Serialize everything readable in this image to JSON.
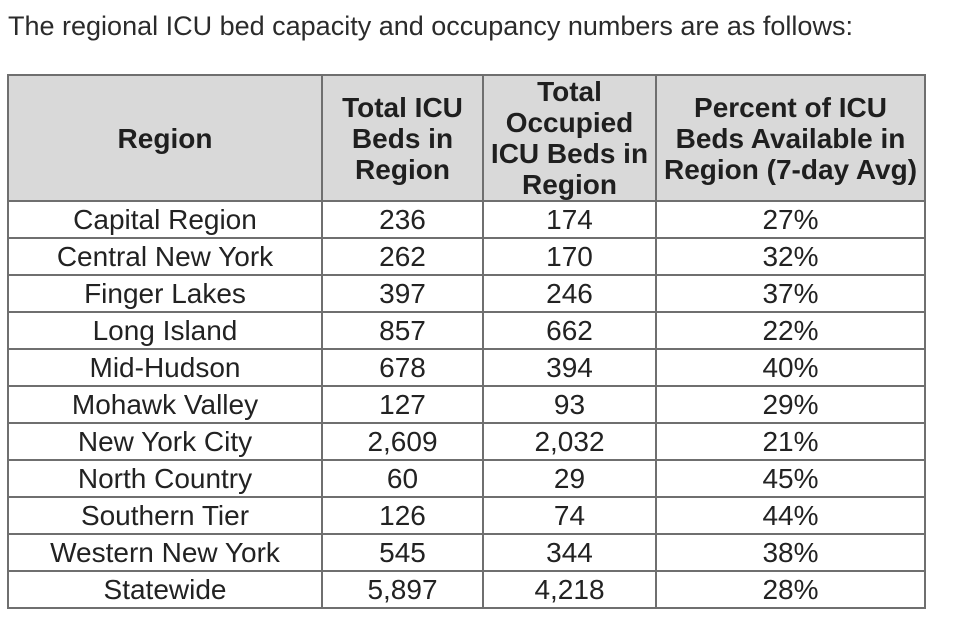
{
  "intro_text": "The regional ICU bed capacity and occupancy numbers are as follows:",
  "table": {
    "headers": [
      "Region",
      "Total ICU Beds in Region",
      "Total Occupied ICU Beds in Region",
      "Percent of ICU Beds Available in Region (7-day Avg)"
    ],
    "rows": [
      [
        "Capital Region",
        "236",
        "174",
        "27%"
      ],
      [
        "Central New York",
        "262",
        "170",
        "32%"
      ],
      [
        "Finger Lakes",
        "397",
        "246",
        "37%"
      ],
      [
        "Long Island",
        "857",
        "662",
        "22%"
      ],
      [
        "Mid-Hudson",
        "678",
        "394",
        "40%"
      ],
      [
        "Mohawk Valley",
        "127",
        "93",
        "29%"
      ],
      [
        "New York City",
        "2,609",
        "2,032",
        "21%"
      ],
      [
        "North Country",
        "60",
        "29",
        "45%"
      ],
      [
        "Southern Tier",
        "126",
        "74",
        "44%"
      ],
      [
        "Western New York",
        "545",
        "344",
        "38%"
      ],
      [
        "Statewide",
        "5,897",
        "4,218",
        "28%"
      ]
    ]
  },
  "colors": {
    "header_bg": "#d9d9d9",
    "border": "#6f6f6f",
    "text": "#222222"
  }
}
